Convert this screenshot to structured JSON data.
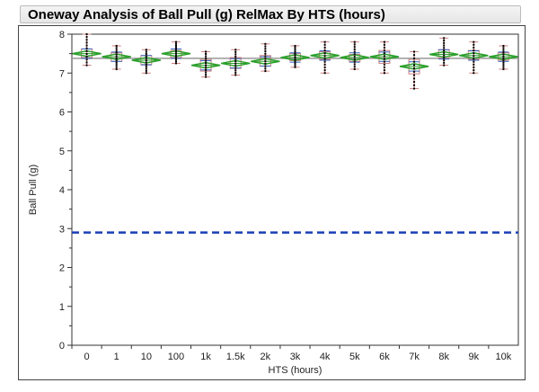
{
  "header": {
    "title": "Oneway Analysis of Ball Pull (g) RelMax By HTS (hours)"
  },
  "chart_data": {
    "type": "box",
    "title": "Oneway Analysis of Ball Pull (g) RelMax By HTS (hours)",
    "xlabel": "HTS (hours)",
    "ylabel": "Ball Pull (g)",
    "ylim": [
      0,
      8
    ],
    "yticks": [
      "0",
      "1",
      "2",
      "3",
      "4",
      "5",
      "6",
      "7",
      "8"
    ],
    "categories": [
      "0",
      "1",
      "10",
      "100",
      "1k",
      "1.5k",
      "2k",
      "3k",
      "4k",
      "5k",
      "6k",
      "7k",
      "8k",
      "9k",
      "10k"
    ],
    "means": [
      7.5,
      7.42,
      7.33,
      7.5,
      7.2,
      7.25,
      7.3,
      7.4,
      7.45,
      7.4,
      7.42,
      7.17,
      7.48,
      7.45,
      7.42
    ],
    "mins": [
      7.2,
      7.1,
      7.0,
      7.25,
      6.9,
      6.95,
      7.05,
      7.15,
      7.0,
      7.1,
      7.0,
      6.6,
      7.2,
      7.0,
      7.1
    ],
    "maxs": [
      8.0,
      7.7,
      7.6,
      7.8,
      7.55,
      7.6,
      7.75,
      7.7,
      7.8,
      7.8,
      7.8,
      7.55,
      7.9,
      7.8,
      7.7
    ],
    "q1": [
      7.4,
      7.3,
      7.22,
      7.4,
      7.05,
      7.12,
      7.18,
      7.32,
      7.35,
      7.3,
      7.25,
      6.98,
      7.38,
      7.35,
      7.33
    ],
    "q3": [
      7.62,
      7.52,
      7.45,
      7.58,
      7.35,
      7.4,
      7.45,
      7.5,
      7.55,
      7.48,
      7.58,
      7.35,
      7.6,
      7.58,
      7.52
    ],
    "grand_mean": 7.38,
    "reference_line": 2.9,
    "colors": {
      "diamond": "#2ca02c",
      "box": "#d08080",
      "ref": "#1a3fb5",
      "points": "#000000",
      "grand": "#999999"
    }
  }
}
